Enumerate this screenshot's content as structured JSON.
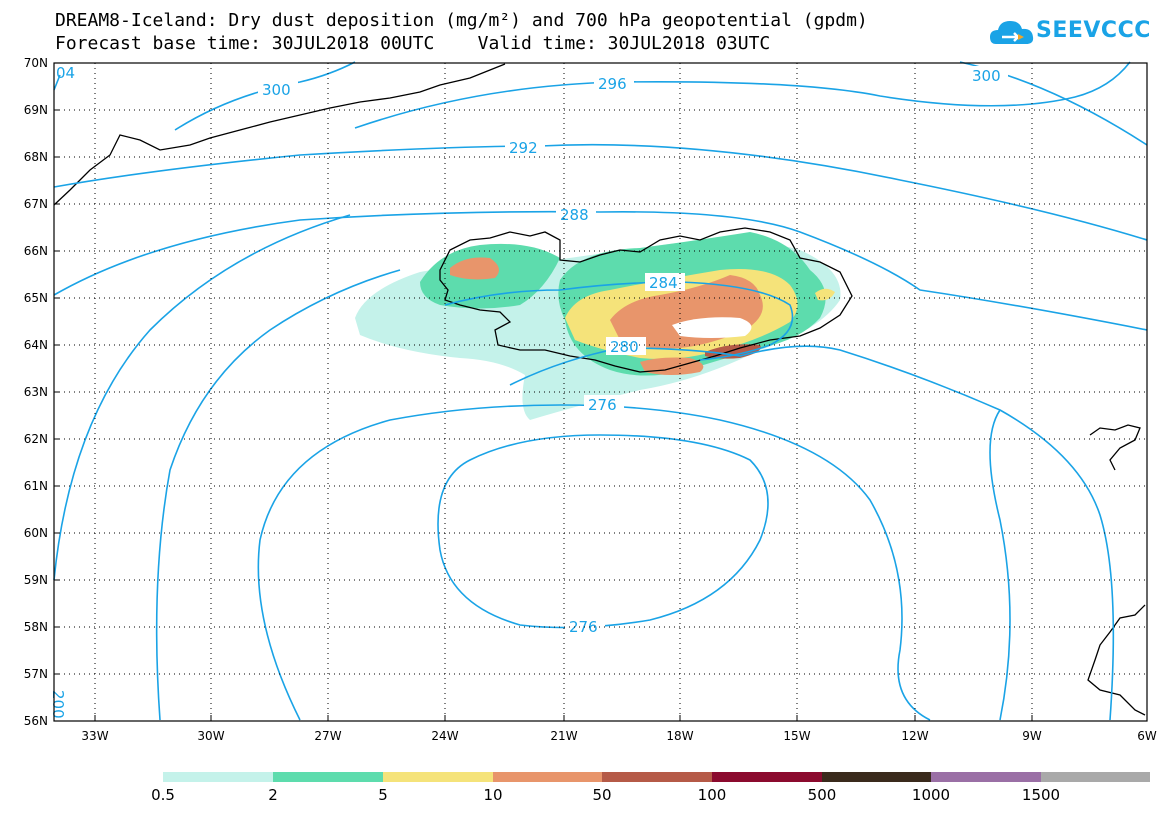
{
  "title": {
    "line1": "DREAM8-Iceland: Dry dust deposition (mg/m²) and 700 hPa geopotential (gpdm)",
    "line2": "Forecast base time: 30JUL2018 00UTC    Valid time: 30JUL2018 03UTC"
  },
  "logo": {
    "text": "SEEVCCC",
    "icon": "cloud-icon",
    "color": "#1aa3e6"
  },
  "map": {
    "lat_labels": [
      "70N",
      "69N",
      "68N",
      "67N",
      "66N",
      "65N",
      "64N",
      "63N",
      "62N",
      "61N",
      "60N",
      "59N",
      "58N",
      "57N",
      "56N"
    ],
    "lon_labels": [
      "33W",
      "30W",
      "27W",
      "24W",
      "21W",
      "18W",
      "15W",
      "12W",
      "9W",
      "6W"
    ],
    "contour_color": "#1aa3e6",
    "contour_labels": [
      "300",
      "296",
      "300",
      "292",
      "288",
      "284",
      "280",
      "276",
      "276",
      "04",
      "200"
    ]
  },
  "colorbar": {
    "colors": [
      "#c4f2ea",
      "#5ddcad",
      "#f5e37a",
      "#e8956b",
      "#b55a47",
      "#8b0a2e",
      "#3a2a1c",
      "#9a6fa5",
      "#a9a9a9"
    ],
    "labels": [
      "0.5",
      "2",
      "5",
      "10",
      "50",
      "100",
      "500",
      "1000",
      "1500"
    ]
  }
}
